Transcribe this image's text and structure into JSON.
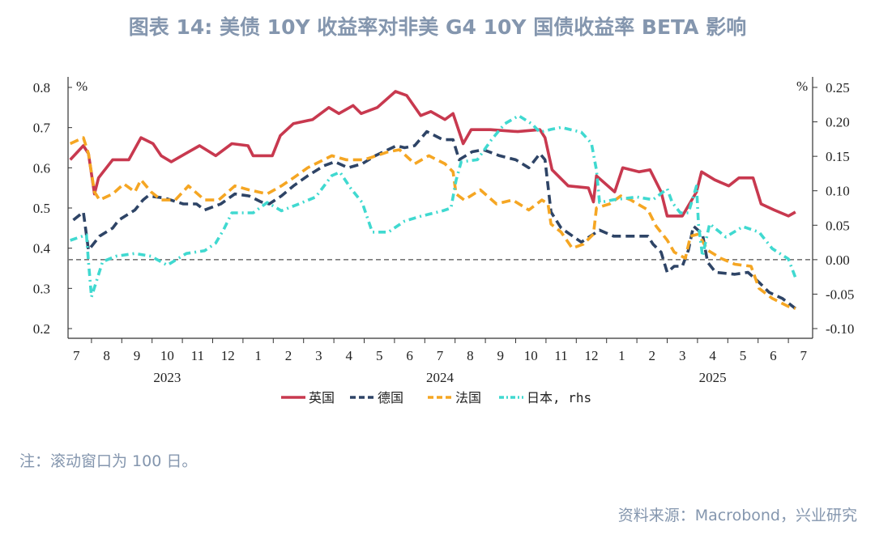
{
  "title": "图表 14: 美债 10Y 收益率对非美 G4 10Y 国债收益率 BETA 影响",
  "note": "注：滚动窗口为 100 日。",
  "source": "资料来源：Macrobond，兴业研究",
  "chart_data": {
    "type": "line",
    "title": "图表 14: 美债 10Y 收益率对非美 G4 10Y 国债收益率 BETA 影响",
    "left_unit": "%",
    "right_unit": "%",
    "ylim_left": [
      0.2,
      0.8
    ],
    "ylim_right": [
      -0.1,
      0.25
    ],
    "yticks_left": [
      "0.8",
      "0.7",
      "0.6",
      "0.5",
      "0.4",
      "0.3",
      "0.2"
    ],
    "yticks_right": [
      "0.25",
      "0.20",
      "0.15",
      "0.10",
      "0.05",
      "0.00",
      "-0.05",
      "-0.10"
    ],
    "x_month_labels": [
      "7",
      "8",
      "9",
      "10",
      "11",
      "12",
      "1",
      "2",
      "3",
      "4",
      "5",
      "6",
      "7",
      "8",
      "9",
      "10",
      "11",
      "12",
      "1",
      "2",
      "3",
      "4",
      "5",
      "6",
      "7"
    ],
    "x_year_labels": [
      {
        "label": "2023",
        "month": "2023-10"
      },
      {
        "label": "2024",
        "month": "2024-07"
      },
      {
        "label": "2025",
        "month": "2025-04"
      }
    ],
    "xlim": [
      "2023-07-01",
      "2025-07-31"
    ],
    "reference_line": {
      "axis": "right",
      "value": 0.0,
      "style": "dashed",
      "color": "#777777"
    },
    "grid": false,
    "legend_position": "bottom",
    "series": [
      {
        "name": "英国",
        "axis": "left",
        "style": "solid",
        "color": "#c8394f",
        "points": [
          [
            "2023-07-10",
            0.62
          ],
          [
            "2023-07-23",
            0.655
          ],
          [
            "2023-07-28",
            0.635
          ],
          [
            "2023-08-04",
            0.535
          ],
          [
            "2023-08-08",
            0.575
          ],
          [
            "2023-08-22",
            0.62
          ],
          [
            "2023-09-08",
            0.62
          ],
          [
            "2023-09-20",
            0.675
          ],
          [
            "2023-10-02",
            0.66
          ],
          [
            "2023-10-10",
            0.63
          ],
          [
            "2023-10-20",
            0.615
          ],
          [
            "2023-11-04",
            0.635
          ],
          [
            "2023-11-18",
            0.655
          ],
          [
            "2023-12-04",
            0.63
          ],
          [
            "2023-12-20",
            0.66
          ],
          [
            "2024-01-06",
            0.655
          ],
          [
            "2024-01-11",
            0.63
          ],
          [
            "2024-01-30",
            0.63
          ],
          [
            "2024-02-08",
            0.68
          ],
          [
            "2024-02-21",
            0.71
          ],
          [
            "2024-03-10",
            0.72
          ],
          [
            "2024-03-26",
            0.75
          ],
          [
            "2024-04-06",
            0.735
          ],
          [
            "2024-04-20",
            0.755
          ],
          [
            "2024-04-28",
            0.735
          ],
          [
            "2024-05-14",
            0.75
          ],
          [
            "2024-06-02",
            0.79
          ],
          [
            "2024-06-13",
            0.78
          ],
          [
            "2024-06-27",
            0.73
          ],
          [
            "2024-07-07",
            0.74
          ],
          [
            "2024-07-21",
            0.72
          ],
          [
            "2024-07-29",
            0.735
          ],
          [
            "2024-08-09",
            0.66
          ],
          [
            "2024-08-17",
            0.695
          ],
          [
            "2024-09-06",
            0.695
          ],
          [
            "2024-10-03",
            0.69
          ],
          [
            "2024-10-25",
            0.695
          ],
          [
            "2024-10-30",
            0.675
          ],
          [
            "2024-11-07",
            0.595
          ],
          [
            "2024-11-23",
            0.555
          ],
          [
            "2024-12-13",
            0.55
          ],
          [
            "2024-12-18",
            0.515
          ],
          [
            "2024-12-21",
            0.58
          ],
          [
            "2025-01-09",
            0.54
          ],
          [
            "2025-01-17",
            0.6
          ],
          [
            "2025-02-03",
            0.59
          ],
          [
            "2025-02-14",
            0.595
          ],
          [
            "2025-02-25",
            0.54
          ],
          [
            "2025-03-01",
            0.48
          ],
          [
            "2025-03-16",
            0.48
          ],
          [
            "2025-03-30",
            0.54
          ],
          [
            "2025-04-05",
            0.59
          ],
          [
            "2025-04-18",
            0.57
          ],
          [
            "2025-05-02",
            0.555
          ],
          [
            "2025-05-12",
            0.575
          ],
          [
            "2025-05-26",
            0.575
          ],
          [
            "2025-06-04",
            0.51
          ],
          [
            "2025-06-17",
            0.495
          ],
          [
            "2025-07-01",
            0.48
          ],
          [
            "2025-07-08",
            0.49
          ]
        ]
      },
      {
        "name": "德国",
        "axis": "left",
        "style": "dashed",
        "color": "#2e4466",
        "points": [
          [
            "2023-07-13",
            0.47
          ],
          [
            "2023-07-23",
            0.49
          ],
          [
            "2023-07-28",
            0.395
          ],
          [
            "2023-08-09",
            0.43
          ],
          [
            "2023-08-22",
            0.45
          ],
          [
            "2023-08-28",
            0.47
          ],
          [
            "2023-09-14",
            0.495
          ],
          [
            "2023-09-22",
            0.52
          ],
          [
            "2023-09-27",
            0.53
          ],
          [
            "2023-10-13",
            0.525
          ],
          [
            "2023-11-02",
            0.51
          ],
          [
            "2023-11-15",
            0.51
          ],
          [
            "2023-11-23",
            0.495
          ],
          [
            "2023-12-09",
            0.51
          ],
          [
            "2023-12-23",
            0.535
          ],
          [
            "2024-01-07",
            0.53
          ],
          [
            "2024-01-19",
            0.515
          ],
          [
            "2024-01-27",
            0.51
          ],
          [
            "2024-02-09",
            0.53
          ],
          [
            "2024-02-21",
            0.555
          ],
          [
            "2024-03-05",
            0.58
          ],
          [
            "2024-03-21",
            0.605
          ],
          [
            "2024-04-02",
            0.615
          ],
          [
            "2024-04-15",
            0.6
          ],
          [
            "2024-04-29",
            0.61
          ],
          [
            "2024-05-12",
            0.63
          ],
          [
            "2024-06-03",
            0.655
          ],
          [
            "2024-06-11",
            0.65
          ],
          [
            "2024-06-21",
            0.655
          ],
          [
            "2024-07-03",
            0.69
          ],
          [
            "2024-07-19",
            0.67
          ],
          [
            "2024-07-29",
            0.67
          ],
          [
            "2024-08-05",
            0.62
          ],
          [
            "2024-08-18",
            0.64
          ],
          [
            "2024-08-29",
            0.645
          ],
          [
            "2024-09-15",
            0.63
          ],
          [
            "2024-10-01",
            0.62
          ],
          [
            "2024-10-14",
            0.6
          ],
          [
            "2024-10-25",
            0.635
          ],
          [
            "2024-10-30",
            0.62
          ],
          [
            "2024-11-06",
            0.49
          ],
          [
            "2024-11-16",
            0.45
          ],
          [
            "2024-12-06",
            0.415
          ],
          [
            "2024-12-24",
            0.445
          ],
          [
            "2025-01-08",
            0.43
          ],
          [
            "2025-01-24",
            0.43
          ],
          [
            "2025-02-12",
            0.43
          ],
          [
            "2025-02-17",
            0.41
          ],
          [
            "2025-02-25",
            0.39
          ],
          [
            "2025-03-01",
            0.34
          ],
          [
            "2025-03-08",
            0.355
          ],
          [
            "2025-03-16",
            0.355
          ],
          [
            "2025-03-22",
            0.395
          ],
          [
            "2025-03-27",
            0.455
          ],
          [
            "2025-04-06",
            0.435
          ],
          [
            "2025-04-11",
            0.365
          ],
          [
            "2025-04-19",
            0.34
          ],
          [
            "2025-05-08",
            0.335
          ],
          [
            "2025-05-21",
            0.34
          ],
          [
            "2025-06-02",
            0.315
          ],
          [
            "2025-06-12",
            0.29
          ],
          [
            "2025-06-25",
            0.275
          ],
          [
            "2025-07-08",
            0.25
          ]
        ]
      },
      {
        "name": "法国",
        "axis": "left",
        "style": "dashed",
        "color": "#f5a623",
        "points": [
          [
            "2023-07-10",
            0.66
          ],
          [
            "2023-07-23",
            0.675
          ],
          [
            "2023-07-28",
            0.635
          ],
          [
            "2023-08-04",
            0.54
          ],
          [
            "2023-08-09",
            0.52
          ],
          [
            "2023-08-22",
            0.535
          ],
          [
            "2023-09-03",
            0.56
          ],
          [
            "2023-09-14",
            0.54
          ],
          [
            "2023-09-20",
            0.57
          ],
          [
            "2023-09-30",
            0.54
          ],
          [
            "2023-10-10",
            0.52
          ],
          [
            "2023-10-24",
            0.52
          ],
          [
            "2023-11-07",
            0.555
          ],
          [
            "2023-11-23",
            0.52
          ],
          [
            "2023-12-07",
            0.52
          ],
          [
            "2023-12-23",
            0.555
          ],
          [
            "2024-01-07",
            0.545
          ],
          [
            "2024-01-25",
            0.535
          ],
          [
            "2024-02-09",
            0.555
          ],
          [
            "2024-02-21",
            0.575
          ],
          [
            "2024-03-05",
            0.6
          ],
          [
            "2024-03-29",
            0.63
          ],
          [
            "2024-04-13",
            0.62
          ],
          [
            "2024-05-01",
            0.62
          ],
          [
            "2024-05-25",
            0.64
          ],
          [
            "2024-06-06",
            0.645
          ],
          [
            "2024-06-21",
            0.61
          ],
          [
            "2024-07-05",
            0.63
          ],
          [
            "2024-07-21",
            0.61
          ],
          [
            "2024-07-29",
            0.59
          ],
          [
            "2024-08-02",
            0.535
          ],
          [
            "2024-08-10",
            0.52
          ],
          [
            "2024-08-26",
            0.545
          ],
          [
            "2024-09-12",
            0.51
          ],
          [
            "2024-09-28",
            0.52
          ],
          [
            "2024-10-14",
            0.495
          ],
          [
            "2024-10-27",
            0.52
          ],
          [
            "2024-11-03",
            0.51
          ],
          [
            "2024-11-06",
            0.46
          ],
          [
            "2024-11-16",
            0.44
          ],
          [
            "2024-11-27",
            0.4
          ],
          [
            "2024-12-08",
            0.41
          ],
          [
            "2024-12-18",
            0.435
          ],
          [
            "2024-12-21",
            0.5
          ],
          [
            "2025-01-04",
            0.51
          ],
          [
            "2025-01-15",
            0.53
          ],
          [
            "2025-01-25",
            0.52
          ],
          [
            "2025-02-12",
            0.495
          ],
          [
            "2025-02-20",
            0.455
          ],
          [
            "2025-03-01",
            0.42
          ],
          [
            "2025-03-08",
            0.39
          ],
          [
            "2025-03-19",
            0.375
          ],
          [
            "2025-03-24",
            0.43
          ],
          [
            "2025-04-02",
            0.435
          ],
          [
            "2025-04-11",
            0.395
          ],
          [
            "2025-04-24",
            0.375
          ],
          [
            "2025-05-08",
            0.36
          ],
          [
            "2025-05-24",
            0.355
          ],
          [
            "2025-06-02",
            0.3
          ],
          [
            "2025-06-15",
            0.275
          ],
          [
            "2025-07-01",
            0.255
          ],
          [
            "2025-07-08",
            0.25
          ]
        ]
      },
      {
        "name": "日本, rhs",
        "axis": "right",
        "style": "dashdot",
        "color": "#40d9d0",
        "points": [
          [
            "2023-07-10",
            0.028
          ],
          [
            "2023-07-26",
            0.036
          ],
          [
            "2023-07-28",
            -0.003
          ],
          [
            "2023-08-01",
            -0.054
          ],
          [
            "2023-08-06",
            -0.031
          ],
          [
            "2023-08-12",
            -0.003
          ],
          [
            "2023-08-25",
            0.005
          ],
          [
            "2023-09-14",
            0.009
          ],
          [
            "2023-09-30",
            0.005
          ],
          [
            "2023-10-16",
            -0.008
          ],
          [
            "2023-11-05",
            0.009
          ],
          [
            "2023-11-23",
            0.013
          ],
          [
            "2023-12-04",
            0.024
          ],
          [
            "2023-12-12",
            0.044
          ],
          [
            "2023-12-20",
            0.068
          ],
          [
            "2024-01-11",
            0.068
          ],
          [
            "2024-01-25",
            0.083
          ],
          [
            "2024-02-09",
            0.071
          ],
          [
            "2024-02-25",
            0.08
          ],
          [
            "2024-03-13",
            0.091
          ],
          [
            "2024-03-29",
            0.122
          ],
          [
            "2024-04-07",
            0.127
          ],
          [
            "2024-04-18",
            0.103
          ],
          [
            "2024-04-29",
            0.083
          ],
          [
            "2024-05-09",
            0.04
          ],
          [
            "2024-05-25",
            0.04
          ],
          [
            "2024-06-11",
            0.056
          ],
          [
            "2024-06-27",
            0.063
          ],
          [
            "2024-07-19",
            0.071
          ],
          [
            "2024-07-27",
            0.075
          ],
          [
            "2024-08-02",
            0.115
          ],
          [
            "2024-08-07",
            0.142
          ],
          [
            "2024-08-23",
            0.145
          ],
          [
            "2024-09-07",
            0.174
          ],
          [
            "2024-09-20",
            0.197
          ],
          [
            "2024-10-04",
            0.209
          ],
          [
            "2024-10-17",
            0.197
          ],
          [
            "2024-10-25",
            0.185
          ],
          [
            "2024-11-06",
            0.189
          ],
          [
            "2024-11-16",
            0.192
          ],
          [
            "2024-12-06",
            0.185
          ],
          [
            "2024-12-16",
            0.169
          ],
          [
            "2024-12-21",
            0.13
          ],
          [
            "2024-12-24",
            0.083
          ],
          [
            "2025-01-08",
            0.087
          ],
          [
            "2025-02-01",
            0.091
          ],
          [
            "2025-02-17",
            0.087
          ],
          [
            "2025-03-01",
            0.103
          ],
          [
            "2025-03-06",
            0.083
          ],
          [
            "2025-03-14",
            0.068
          ],
          [
            "2025-03-22",
            0.068
          ],
          [
            "2025-03-30",
            0.107
          ],
          [
            "2025-04-02",
            0.052
          ],
          [
            "2025-04-06",
            0.005
          ],
          [
            "2025-04-13",
            0.052
          ],
          [
            "2025-04-29",
            0.033
          ],
          [
            "2025-05-16",
            0.048
          ],
          [
            "2025-06-02",
            0.04
          ],
          [
            "2025-06-15",
            0.016
          ],
          [
            "2025-07-01",
            0.001
          ],
          [
            "2025-07-08",
            -0.026
          ]
        ]
      }
    ]
  }
}
